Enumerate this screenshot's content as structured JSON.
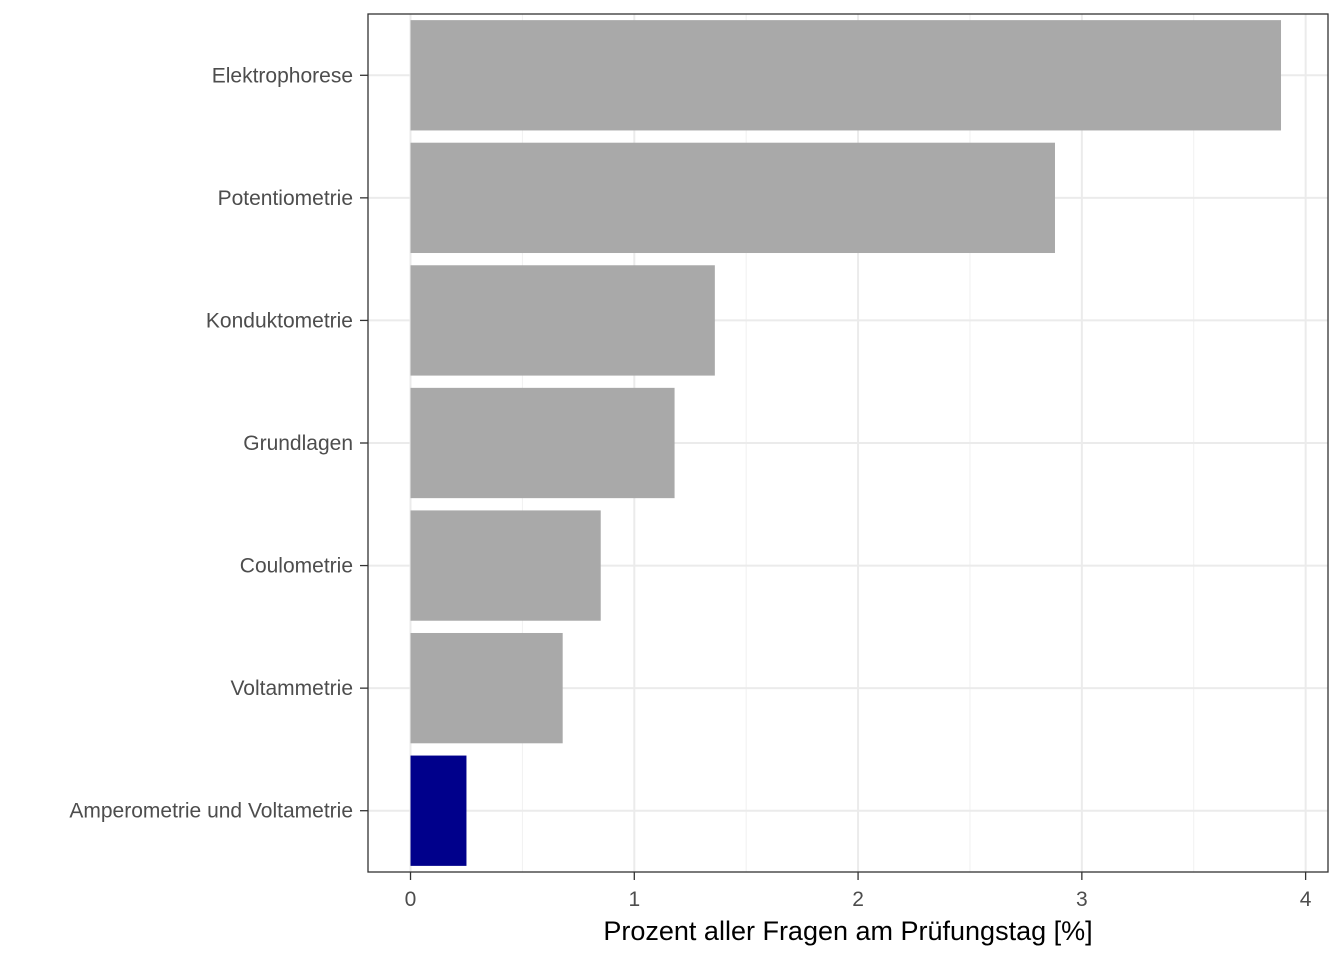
{
  "chart_data": {
    "type": "bar",
    "orientation": "horizontal",
    "title": "",
    "xlabel": "Prozent aller Fragen am Prüfungstag [%]",
    "ylabel": "",
    "xlim": [
      -0.19,
      4.1
    ],
    "x_ticks": [
      0,
      1,
      2,
      3,
      4
    ],
    "grid": true,
    "categories": [
      "Elektrophorese",
      "Potentiometrie",
      "Konduktometrie",
      "Grundlagen",
      "Coulometrie",
      "Voltammetrie",
      "Amperometrie und Voltametrie"
    ],
    "values": [
      3.89,
      2.88,
      1.36,
      1.18,
      0.85,
      0.68,
      0.25
    ],
    "bar_colors": [
      "#a9a9a9",
      "#a9a9a9",
      "#a9a9a9",
      "#a9a9a9",
      "#a9a9a9",
      "#a9a9a9",
      "#00008b"
    ],
    "highlight_color": "#00008b",
    "default_color": "#a9a9a9"
  }
}
